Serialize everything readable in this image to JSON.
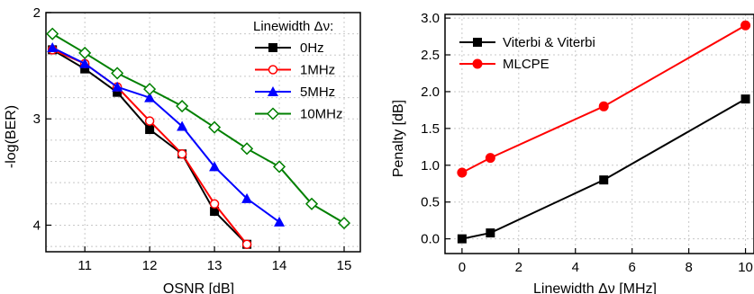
{
  "chart_data": [
    {
      "type": "line",
      "xlabel": "OSNR [dB]",
      "ylabel": "-log(BER)",
      "xlim": [
        10.4,
        15.25
      ],
      "ylim": [
        2.0,
        4.25
      ],
      "y_inverted": true,
      "grid": true,
      "x_ticks": [
        "11",
        "12",
        "13",
        "14",
        "15"
      ],
      "y_ticks": [
        "2",
        "3",
        "4"
      ],
      "legend_title": "Linewidth Δν:",
      "legend_position": "top-right",
      "series": [
        {
          "name": "0Hz",
          "color": "#000000",
          "marker": "filled-square",
          "x": [
            10.5,
            11,
            11.5,
            12,
            12.5,
            13,
            13.5
          ],
          "y": [
            2.35,
            2.53,
            2.75,
            3.1,
            3.33,
            3.87,
            4.18
          ]
        },
        {
          "name": "1MHz",
          "color": "#ff0000",
          "marker": "open-circle",
          "x": [
            10.5,
            11,
            11.5,
            12,
            12.5,
            13,
            13.5
          ],
          "y": [
            2.35,
            2.48,
            2.7,
            3.02,
            3.33,
            3.8,
            4.18
          ]
        },
        {
          "name": "5MHz",
          "color": "#0000ff",
          "marker": "filled-triangle",
          "x": [
            10.5,
            11,
            11.5,
            12,
            12.5,
            13,
            13.5,
            14
          ],
          "y": [
            2.33,
            2.48,
            2.7,
            2.8,
            3.07,
            3.45,
            3.75,
            3.97
          ]
        },
        {
          "name": "10MHz",
          "color": "#008000",
          "marker": "open-diamond",
          "x": [
            10.5,
            11,
            11.5,
            12,
            12.5,
            13,
            13.5,
            14,
            14.5,
            15
          ],
          "y": [
            2.2,
            2.38,
            2.57,
            2.72,
            2.88,
            3.08,
            3.28,
            3.45,
            3.8,
            3.98
          ]
        }
      ]
    },
    {
      "type": "line",
      "xlabel": "Linewidth Δν [MHz]",
      "ylabel": "Penalty [dB]",
      "xlim": [
        -0.6,
        10.3
      ],
      "ylim": [
        -0.2,
        3.05
      ],
      "grid": true,
      "x_ticks": [
        "0",
        "2",
        "4",
        "6",
        "8",
        "10"
      ],
      "y_ticks": [
        "0.0",
        "0.5",
        "1.0",
        "1.5",
        "2.0",
        "2.5",
        "3.0"
      ],
      "legend_position": "top-left",
      "series": [
        {
          "name": "Viterbi & Viterbi",
          "color": "#000000",
          "marker": "filled-square",
          "x": [
            0,
            1,
            5,
            10
          ],
          "y": [
            0.0,
            0.08,
            0.8,
            1.9
          ]
        },
        {
          "name": "MLCPE",
          "color": "#ff0000",
          "marker": "filled-circle",
          "x": [
            0,
            1,
            5,
            10
          ],
          "y": [
            0.9,
            1.1,
            1.8,
            2.9
          ]
        }
      ]
    }
  ]
}
